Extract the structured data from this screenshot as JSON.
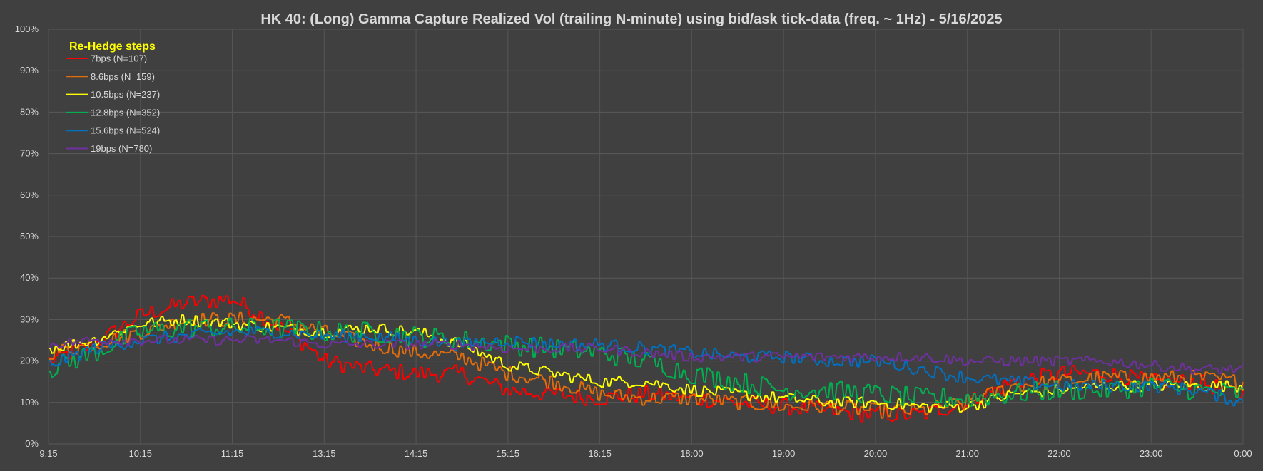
{
  "chart_data": {
    "type": "line",
    "title": "HK 40: (Long) Gamma Capture Realized Vol (trailing N-minute) using bid/ask tick-data (freq. ~ 1Hz) - 5/16/2025",
    "xlabel": "",
    "ylabel": "",
    "x_ticks": [
      "9:15",
      "10:15",
      "11:15",
      "13:15",
      "14:15",
      "15:15",
      "16:15",
      "18:00",
      "19:00",
      "20:00",
      "21:00",
      "22:00",
      "23:00",
      "0:00"
    ],
    "y_ticks": [
      "0%",
      "10%",
      "20%",
      "30%",
      "40%",
      "50%",
      "60%",
      "70%",
      "80%",
      "90%",
      "100%"
    ],
    "ylim": [
      0,
      1
    ],
    "grid": true,
    "legend": {
      "title": "Re-Hedge steps",
      "placement": "top-left"
    },
    "series": [
      {
        "name": "7bps  (N=107)",
        "color": "#ff0000",
        "points": [
          [
            0,
            0.2
          ],
          [
            0.5,
            0.24
          ],
          [
            1,
            0.31
          ],
          [
            1.5,
            0.34
          ],
          [
            2,
            0.35
          ],
          [
            2.4,
            0.3
          ],
          [
            2.8,
            0.24
          ],
          [
            3,
            0.2
          ],
          [
            3.5,
            0.18
          ],
          [
            4,
            0.17
          ],
          [
            4.5,
            0.17
          ],
          [
            5,
            0.13
          ],
          [
            5.5,
            0.12
          ],
          [
            6,
            0.11
          ],
          [
            6.5,
            0.12
          ],
          [
            7,
            0.11
          ],
          [
            7.5,
            0.1
          ],
          [
            8,
            0.09
          ],
          [
            8.5,
            0.08
          ],
          [
            9,
            0.07
          ],
          [
            9.5,
            0.07
          ],
          [
            10,
            0.1
          ],
          [
            10.5,
            0.15
          ],
          [
            11,
            0.17
          ],
          [
            11.5,
            0.17
          ],
          [
            12,
            0.15
          ],
          [
            12.5,
            0.15
          ],
          [
            13,
            0.12
          ]
        ],
        "noise": 0.02
      },
      {
        "name": "8.6bps  (N=159)",
        "color": "#e36c0a",
        "points": [
          [
            0,
            0.22
          ],
          [
            0.5,
            0.24
          ],
          [
            1,
            0.27
          ],
          [
            1.5,
            0.3
          ],
          [
            2,
            0.3
          ],
          [
            2.5,
            0.3
          ],
          [
            3,
            0.27
          ],
          [
            3.5,
            0.24
          ],
          [
            4,
            0.22
          ],
          [
            4.5,
            0.21
          ],
          [
            5,
            0.17
          ],
          [
            5.5,
            0.15
          ],
          [
            6,
            0.12
          ],
          [
            6.5,
            0.11
          ],
          [
            7,
            0.11
          ],
          [
            7.5,
            0.1
          ],
          [
            8,
            0.09
          ],
          [
            8.5,
            0.09
          ],
          [
            9,
            0.08
          ],
          [
            9.5,
            0.08
          ],
          [
            10,
            0.1
          ],
          [
            10.5,
            0.14
          ],
          [
            11,
            0.15
          ],
          [
            11.5,
            0.16
          ],
          [
            12,
            0.16
          ],
          [
            12.5,
            0.16
          ],
          [
            13,
            0.15
          ]
        ],
        "noise": 0.018
      },
      {
        "name": "10.5bps  (N=237)",
        "color": "#ffff00",
        "points": [
          [
            0,
            0.23
          ],
          [
            0.5,
            0.25
          ],
          [
            1,
            0.29
          ],
          [
            1.5,
            0.3
          ],
          [
            2,
            0.29
          ],
          [
            2.5,
            0.28
          ],
          [
            3,
            0.27
          ],
          [
            3.5,
            0.28
          ],
          [
            4,
            0.27
          ],
          [
            4.5,
            0.24
          ],
          [
            5,
            0.19
          ],
          [
            5.5,
            0.17
          ],
          [
            6,
            0.15
          ],
          [
            6.5,
            0.15
          ],
          [
            7,
            0.13
          ],
          [
            7.5,
            0.12
          ],
          [
            8,
            0.11
          ],
          [
            8.5,
            0.1
          ],
          [
            9,
            0.1
          ],
          [
            9.5,
            0.09
          ],
          [
            10,
            0.09
          ],
          [
            10.5,
            0.12
          ],
          [
            11,
            0.13
          ],
          [
            11.5,
            0.14
          ],
          [
            12,
            0.14
          ],
          [
            12.5,
            0.14
          ],
          [
            13,
            0.14
          ]
        ],
        "noise": 0.014
      },
      {
        "name": "12.8bps  (N=352)",
        "color": "#00b050",
        "points": [
          [
            0,
            0.18
          ],
          [
            0.5,
            0.22
          ],
          [
            1,
            0.27
          ],
          [
            1.5,
            0.28
          ],
          [
            2,
            0.28
          ],
          [
            2.5,
            0.28
          ],
          [
            3,
            0.27
          ],
          [
            3.5,
            0.27
          ],
          [
            4,
            0.26
          ],
          [
            4.5,
            0.25
          ],
          [
            5,
            0.24
          ],
          [
            5.5,
            0.23
          ],
          [
            6,
            0.22
          ],
          [
            6.5,
            0.2
          ],
          [
            7,
            0.17
          ],
          [
            7.5,
            0.15
          ],
          [
            8,
            0.13
          ],
          [
            8.5,
            0.13
          ],
          [
            9,
            0.12
          ],
          [
            9.5,
            0.11
          ],
          [
            10,
            0.11
          ],
          [
            10.5,
            0.12
          ],
          [
            11,
            0.13
          ],
          [
            11.5,
            0.13
          ],
          [
            12,
            0.14
          ],
          [
            12.5,
            0.13
          ],
          [
            13,
            0.12
          ]
        ],
        "noise": 0.025
      },
      {
        "name": "15.6bps  (N=524)",
        "color": "#0070c0",
        "points": [
          [
            0,
            0.19
          ],
          [
            0.5,
            0.23
          ],
          [
            1,
            0.25
          ],
          [
            1.5,
            0.26
          ],
          [
            2,
            0.27
          ],
          [
            2.5,
            0.27
          ],
          [
            3,
            0.26
          ],
          [
            3.5,
            0.26
          ],
          [
            4,
            0.25
          ],
          [
            4.5,
            0.24
          ],
          [
            5,
            0.25
          ],
          [
            5.5,
            0.24
          ],
          [
            6,
            0.24
          ],
          [
            6.5,
            0.23
          ],
          [
            7,
            0.22
          ],
          [
            7.5,
            0.21
          ],
          [
            8,
            0.21
          ],
          [
            8.5,
            0.2
          ],
          [
            9,
            0.2
          ],
          [
            9.5,
            0.18
          ],
          [
            10,
            0.16
          ],
          [
            10.5,
            0.15
          ],
          [
            11,
            0.14
          ],
          [
            11.5,
            0.14
          ],
          [
            12,
            0.14
          ],
          [
            12.5,
            0.13
          ],
          [
            13,
            0.1
          ]
        ],
        "noise": 0.015
      },
      {
        "name": "19bps  (N=780)",
        "color": "#7030a0",
        "points": [
          [
            0,
            0.24
          ],
          [
            0.5,
            0.25
          ],
          [
            1,
            0.25
          ],
          [
            1.5,
            0.25
          ],
          [
            2,
            0.25
          ],
          [
            2.5,
            0.25
          ],
          [
            3,
            0.24
          ],
          [
            3.5,
            0.24
          ],
          [
            4,
            0.24
          ],
          [
            4.5,
            0.24
          ],
          [
            5,
            0.23
          ],
          [
            5.5,
            0.23
          ],
          [
            6,
            0.23
          ],
          [
            6.5,
            0.22
          ],
          [
            7,
            0.21
          ],
          [
            7.5,
            0.21
          ],
          [
            8,
            0.21
          ],
          [
            8.5,
            0.21
          ],
          [
            9,
            0.21
          ],
          [
            9.5,
            0.21
          ],
          [
            10,
            0.2
          ],
          [
            10.5,
            0.2
          ],
          [
            11,
            0.2
          ],
          [
            11.5,
            0.2
          ],
          [
            12,
            0.19
          ],
          [
            12.5,
            0.18
          ],
          [
            13,
            0.18
          ]
        ],
        "noise": 0.012
      }
    ]
  }
}
